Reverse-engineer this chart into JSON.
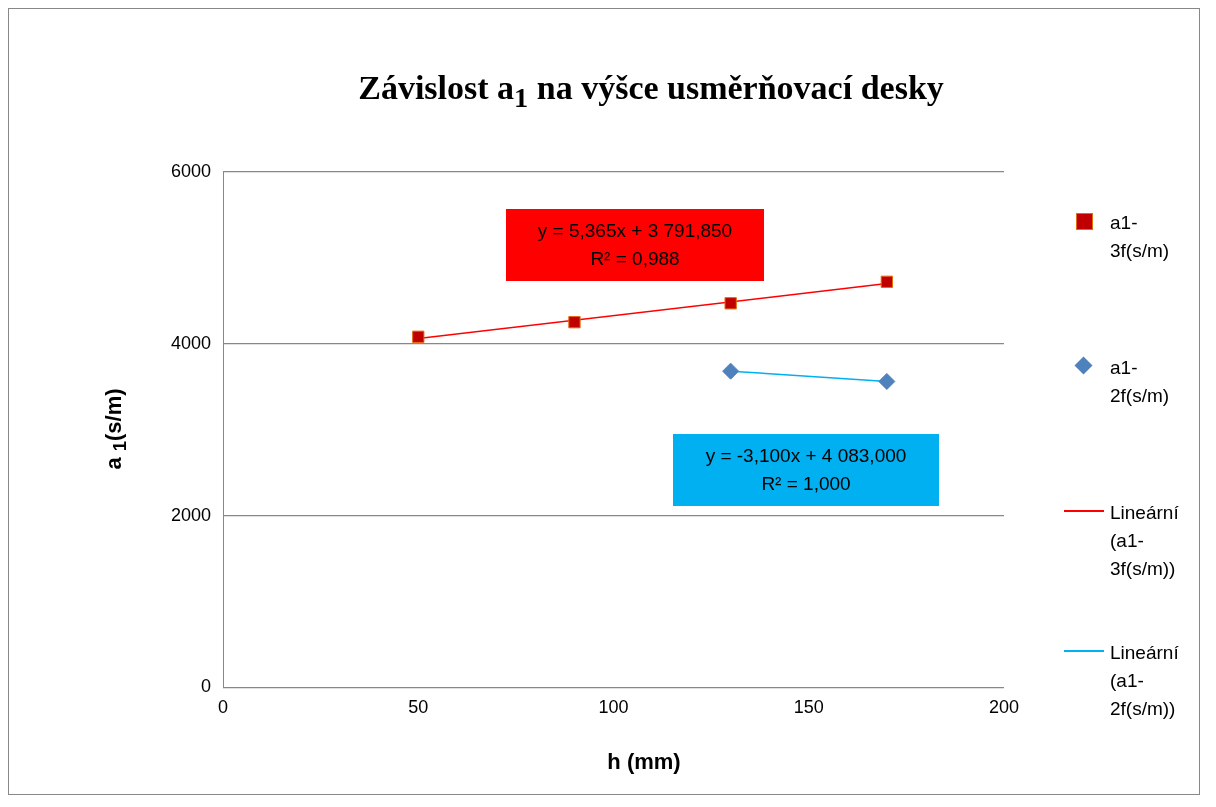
{
  "chart_data": {
    "type": "scatter",
    "title": "Závislost a$_{1}$ na výšce usměrňovací desky",
    "xlabel": "h (mm)",
    "ylabel": "a $_{1}$(s/m)",
    "series": [
      {
        "name": "a1-3f(s/m)",
        "marker": "square",
        "color": "#c00000",
        "x": [
          50,
          90,
          130,
          170
        ],
        "values": [
          4080,
          4250,
          4470,
          4720
        ]
      },
      {
        "name": "a1-2f(s/m)",
        "marker": "diamond",
        "color": "#4f81bd",
        "x": [
          130,
          170
        ],
        "values": [
          3680,
          3560
        ]
      },
      {
        "name": "Lineární (a1-3f(s/m))",
        "type": "line",
        "marker": "none",
        "color": "#ff0000",
        "x": [
          50,
          170
        ],
        "values": [
          4060,
          4700
        ]
      },
      {
        "name": "Lineární (a1-2f(s/m))",
        "type": "line",
        "marker": "none",
        "color": "#00b0f0",
        "x": [
          130,
          170
        ],
        "values": [
          3680,
          3560
        ]
      }
    ],
    "annotations": [
      "y = 5,365x + 3 791,850\nR² = 0,988",
      "y = -3,100x + 4 083,000\nR² = 1,000"
    ],
    "xlim": [
      0,
      200
    ],
    "xticks": [
      0,
      50,
      100,
      150,
      200
    ],
    "ylim": [
      0,
      6000
    ],
    "yticks": [
      0,
      2000,
      4000,
      6000
    ],
    "grid": "y",
    "legend": "right"
  }
}
